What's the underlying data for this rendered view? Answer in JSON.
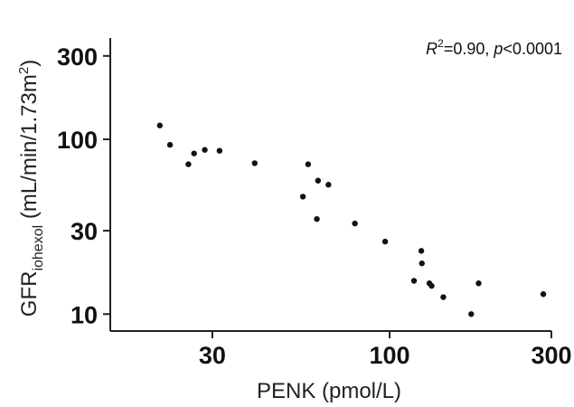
{
  "chart_data": {
    "type": "scatter",
    "x_scale": "log",
    "y_scale": "log",
    "xlabel": "PENK (pmol/L)",
    "ylabel": {
      "main": "GFR",
      "sub": "iohexol",
      "unit_prefix": " (mL/min/1.73m",
      "unit_sup": "2",
      "unit_suffix": ")"
    },
    "annotation": {
      "r_label": "R",
      "r_sup": "2",
      "r_value": "=0.90, ",
      "p_label": "p",
      "p_value": "<0.0001"
    },
    "xlim": [
      15,
      300
    ],
    "ylim": [
      8,
      380
    ],
    "x_ticks": [
      {
        "value": 30,
        "label": "30"
      },
      {
        "value": 100,
        "label": "100"
      },
      {
        "value": 300,
        "label": "300"
      }
    ],
    "y_ticks": [
      {
        "value": 10,
        "label": "10"
      },
      {
        "value": 30,
        "label": "30"
      },
      {
        "value": 100,
        "label": "100"
      },
      {
        "value": 300,
        "label": "300"
      }
    ],
    "grid": false,
    "points": [
      {
        "x": 21,
        "y": 120
      },
      {
        "x": 22.5,
        "y": 93
      },
      {
        "x": 25.5,
        "y": 72
      },
      {
        "x": 26.5,
        "y": 83
      },
      {
        "x": 28.5,
        "y": 87
      },
      {
        "x": 31.5,
        "y": 86
      },
      {
        "x": 40,
        "y": 73
      },
      {
        "x": 55.5,
        "y": 47
      },
      {
        "x": 57.5,
        "y": 72
      },
      {
        "x": 61,
        "y": 35
      },
      {
        "x": 61.5,
        "y": 58
      },
      {
        "x": 66,
        "y": 55
      },
      {
        "x": 79,
        "y": 33
      },
      {
        "x": 97,
        "y": 26
      },
      {
        "x": 118,
        "y": 15.5
      },
      {
        "x": 124,
        "y": 23
      },
      {
        "x": 124.5,
        "y": 19.5
      },
      {
        "x": 131,
        "y": 15
      },
      {
        "x": 133,
        "y": 14.5
      },
      {
        "x": 144,
        "y": 12.5
      },
      {
        "x": 174,
        "y": 10
      },
      {
        "x": 183,
        "y": 15
      },
      {
        "x": 284,
        "y": 13
      }
    ]
  }
}
